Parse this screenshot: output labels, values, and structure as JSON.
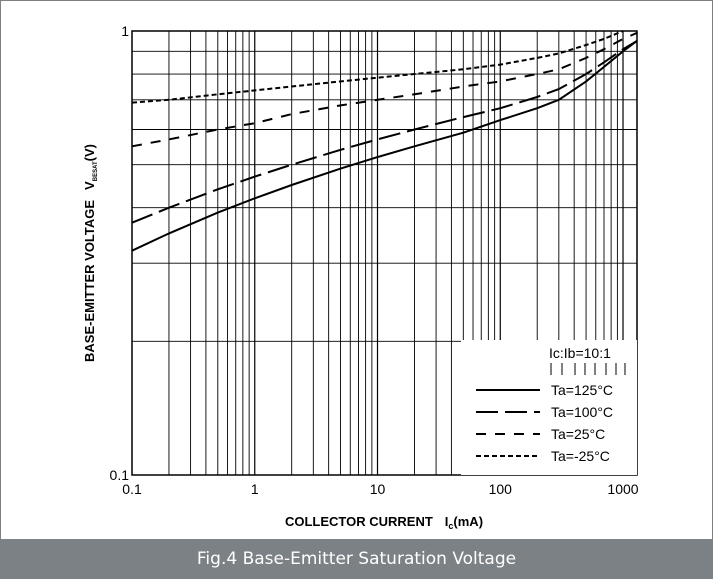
{
  "figure": {
    "caption": "Fig.4  Base-Emitter Saturation Voltage"
  },
  "colors": {
    "line": "#000000",
    "grid": "#000000",
    "caption_bg": "#7c8185",
    "caption_text": "#ffffff"
  },
  "chart_data": {
    "type": "line",
    "xlabel": "COLLECTOR CURRENT",
    "xlabel_symbol": "I",
    "xlabel_sub": "c",
    "xlabel_unit": "(mA)",
    "ylabel": "BASE-EMITTER VOLTAGE",
    "ylabel_symbol": "V",
    "ylabel_sub": "BESAT",
    "ylabel_unit": "(V)",
    "x_scale": "log",
    "y_scale": "log",
    "xlim": [
      0.1,
      1300
    ],
    "ylim": [
      0.1,
      1
    ],
    "x_ticks": [
      0.1,
      1,
      10,
      100,
      1000
    ],
    "x_tick_labels": [
      "0.1",
      "1",
      "10",
      "100",
      "1000"
    ],
    "y_ticks": [
      0.1,
      1
    ],
    "y_tick_labels": [
      "0.1",
      "1"
    ],
    "grid": true,
    "legend_title": "Ic:Ib=10:1",
    "legend_position": "bottom-right",
    "series": [
      {
        "name": "Ta=125°C",
        "dash": "solid",
        "x": [
          0.1,
          0.2,
          0.5,
          1,
          2,
          5,
          10,
          20,
          50,
          100,
          200,
          300,
          500,
          700,
          1000,
          1300
        ],
        "y": [
          0.32,
          0.35,
          0.39,
          0.42,
          0.45,
          0.49,
          0.52,
          0.55,
          0.59,
          0.63,
          0.67,
          0.7,
          0.77,
          0.83,
          0.9,
          0.95
        ]
      },
      {
        "name": "Ta=100°C",
        "dash": "long-dash",
        "x": [
          0.1,
          0.2,
          0.5,
          1,
          2,
          5,
          10,
          20,
          50,
          100,
          200,
          300,
          500,
          700,
          1000,
          1300
        ],
        "y": [
          0.37,
          0.4,
          0.44,
          0.47,
          0.5,
          0.54,
          0.57,
          0.6,
          0.64,
          0.67,
          0.71,
          0.74,
          0.8,
          0.85,
          0.91,
          0.95
        ]
      },
      {
        "name": "Ta=25°C",
        "dash": "dash",
        "x": [
          0.1,
          0.2,
          0.5,
          1,
          2,
          5,
          10,
          20,
          50,
          100,
          200,
          300,
          500,
          700,
          1000,
          1300
        ],
        "y": [
          0.55,
          0.57,
          0.6,
          0.62,
          0.65,
          0.68,
          0.7,
          0.72,
          0.75,
          0.77,
          0.8,
          0.82,
          0.87,
          0.91,
          0.96,
          0.99
        ]
      },
      {
        "name": "Ta=-25°C",
        "dash": "short-dash",
        "x": [
          0.1,
          0.2,
          0.5,
          1,
          2,
          5,
          10,
          20,
          50,
          100,
          200,
          300,
          500,
          700,
          1000
        ],
        "y": [
          0.69,
          0.7,
          0.72,
          0.735,
          0.75,
          0.77,
          0.785,
          0.8,
          0.82,
          0.84,
          0.87,
          0.89,
          0.93,
          0.96,
          1.0
        ]
      }
    ]
  }
}
